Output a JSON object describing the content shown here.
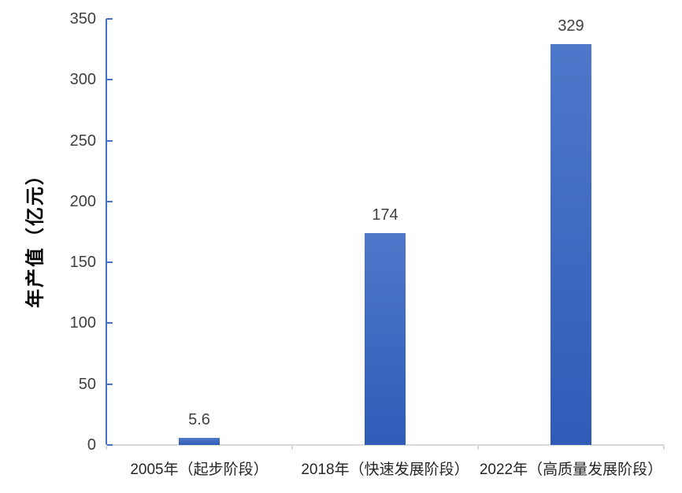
{
  "chart_data": {
    "type": "bar",
    "title": "",
    "ylabel": "年产值（亿元）",
    "xlabel": "",
    "categories": [
      "2005年（起步阶段）",
      "2018年（快速发展阶段）",
      "2022年（高质量发展阶段）"
    ],
    "values": [
      5.6,
      174,
      329
    ],
    "value_labels": [
      "5.6",
      "174",
      "329"
    ],
    "ylim": [
      0,
      350
    ],
    "yticks": [
      0,
      50,
      100,
      150,
      200,
      250,
      300,
      350
    ],
    "grid": false,
    "legend_position": "none",
    "colors": {
      "background": "#FFFFFF",
      "bar_gradient_top": "#4E78CA",
      "bar_gradient_bottom": "#2E5CB7",
      "y_axis_line": "#4472C4",
      "x_axis_line": "#D9D9D9",
      "tick_label": "#404040",
      "data_label": "#404040",
      "category_label": "#262626"
    }
  }
}
